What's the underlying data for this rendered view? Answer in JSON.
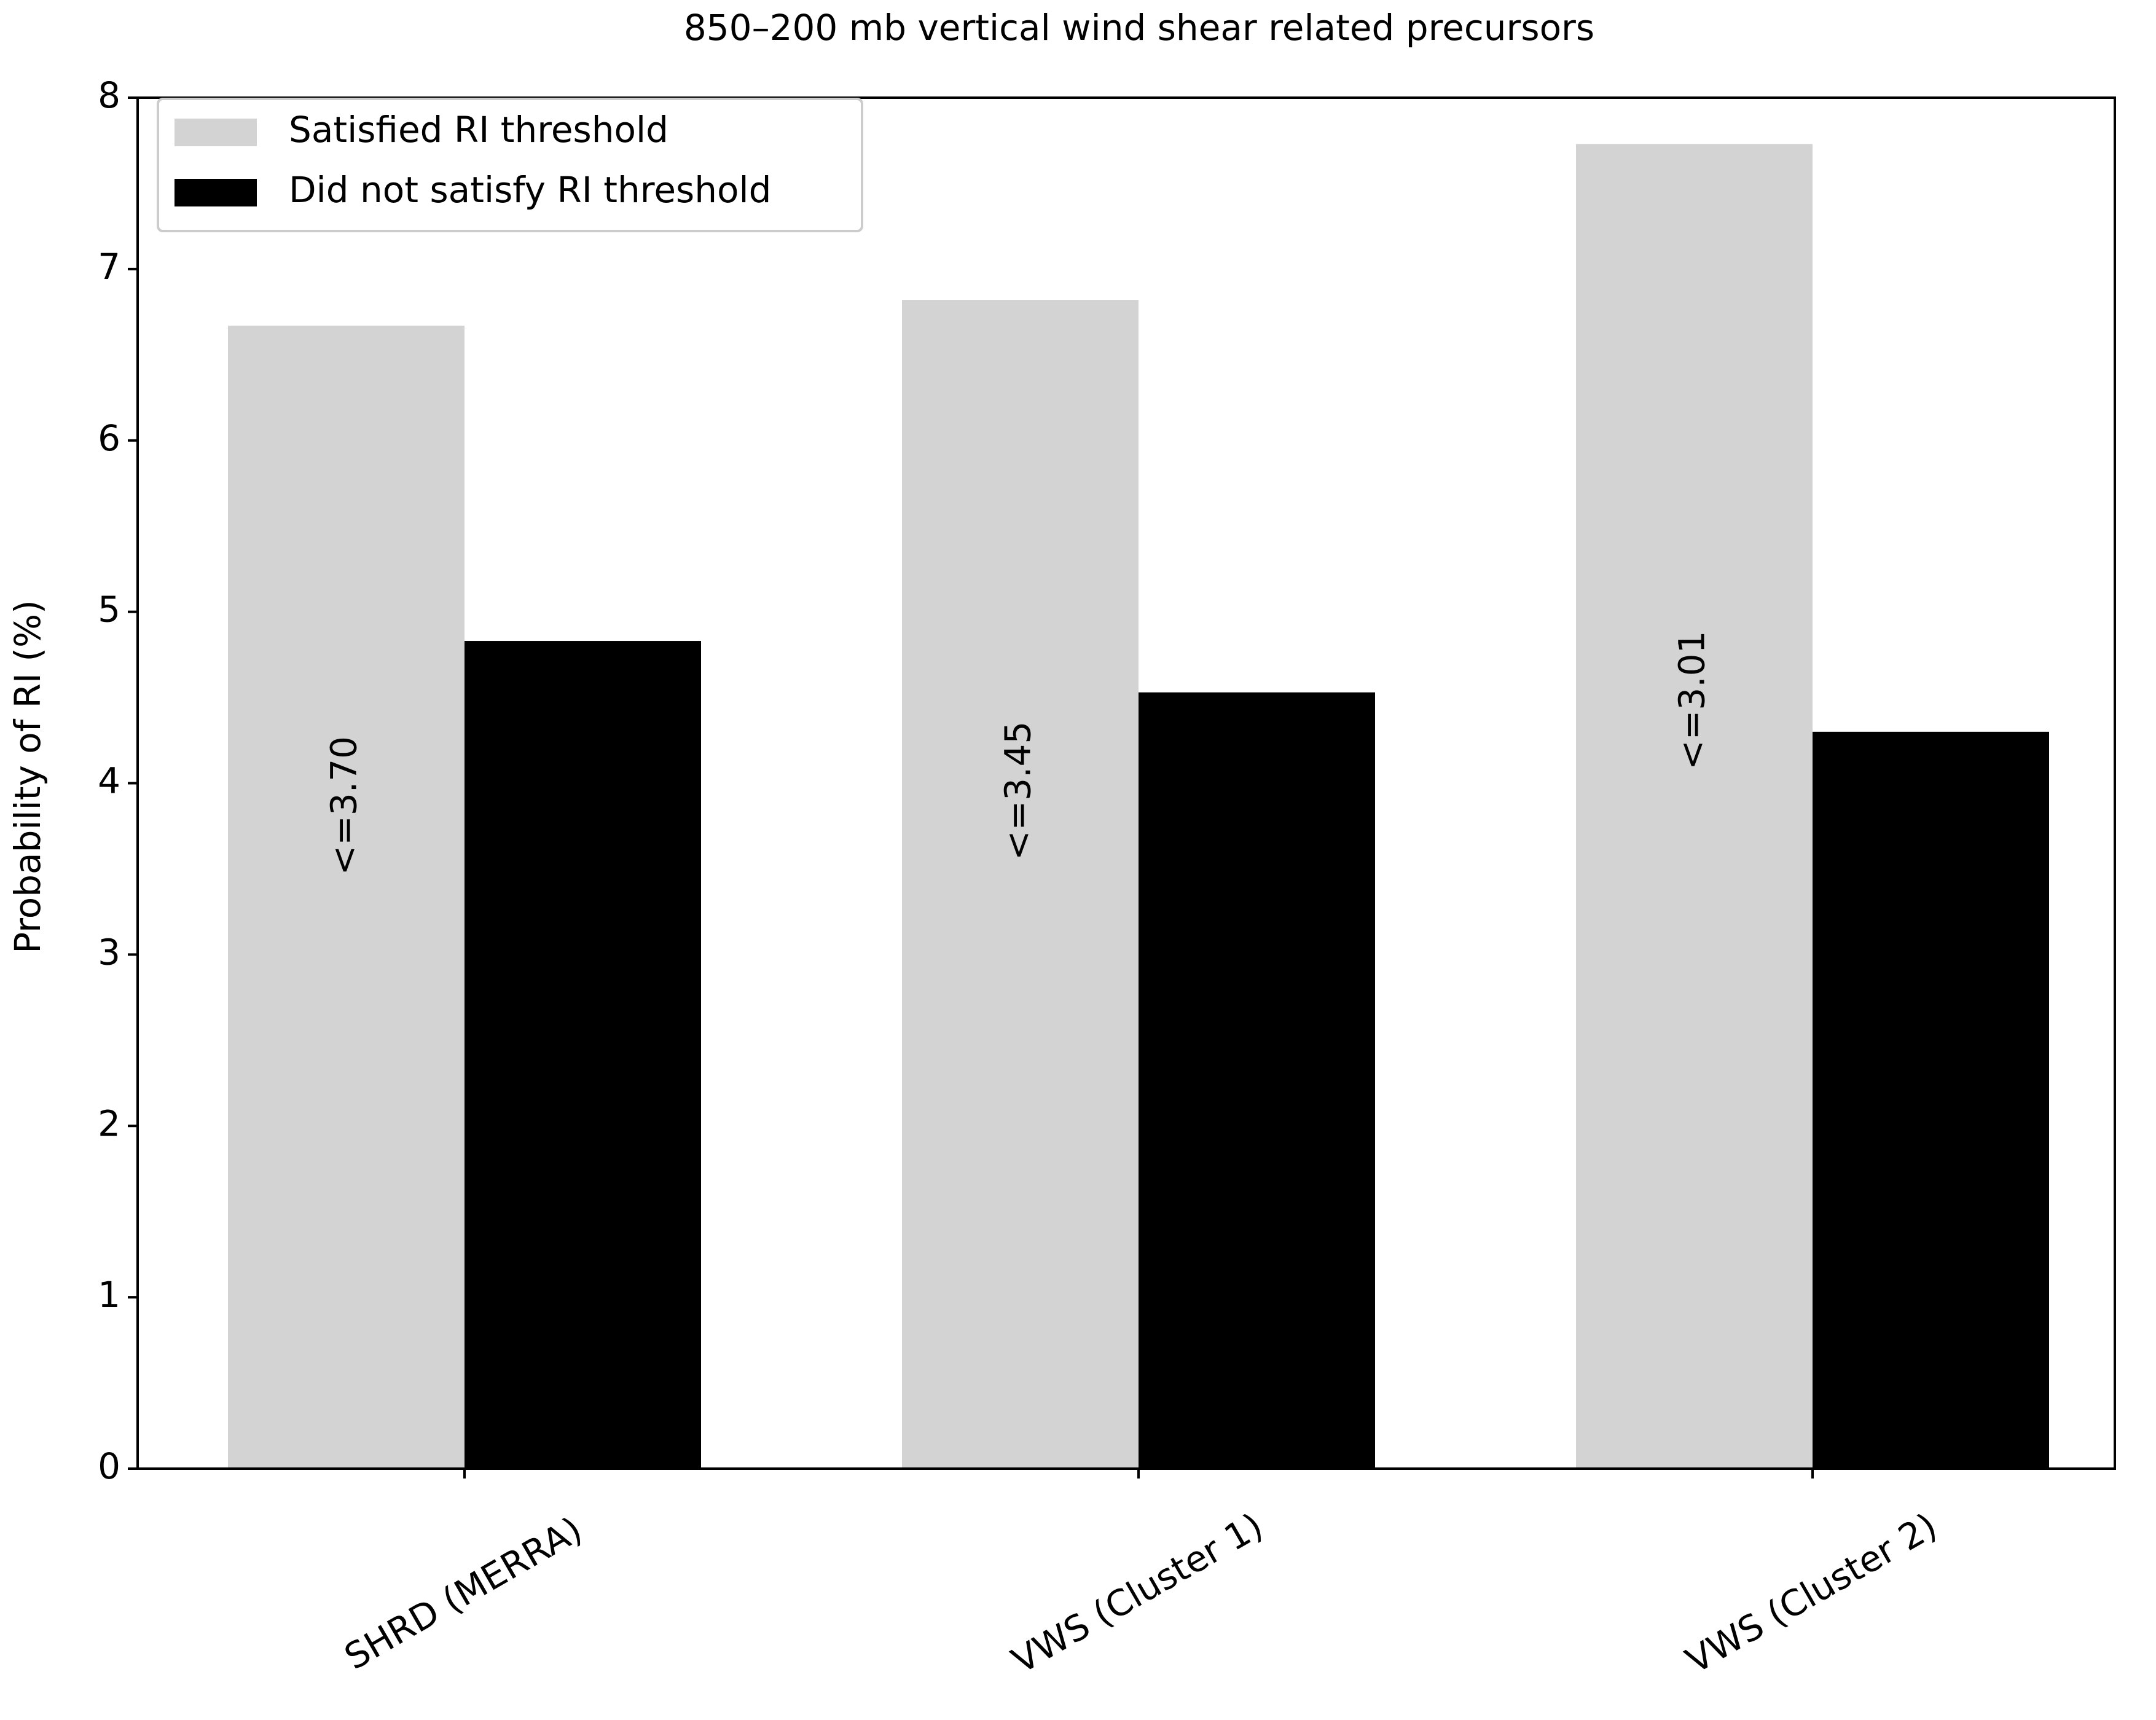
{
  "chart_data": {
    "type": "bar",
    "title": "850–200 mb vertical wind shear related precursors",
    "y_label": "Probability of RI (%)",
    "categories": [
      "SHRD (MERRA)",
      "VWS (Cluster 1)",
      "VWS (Cluster 2)"
    ],
    "series": [
      {
        "name": "Satisfied RI threshold",
        "color": "#d3d3d3",
        "values": [
          6.67,
          6.82,
          7.73
        ]
      },
      {
        "name": "Did not satisfy RI threshold",
        "color": "#000000",
        "values": [
          4.83,
          4.53,
          4.3
        ]
      }
    ],
    "annotations": [
      "<=3.70",
      "<=3.45",
      "<=3.01"
    ],
    "ylim": [
      0,
      8
    ],
    "yticks": [
      0,
      1,
      2,
      3,
      4,
      5,
      6,
      7,
      8
    ],
    "grid": false,
    "legend": "upper left"
  }
}
